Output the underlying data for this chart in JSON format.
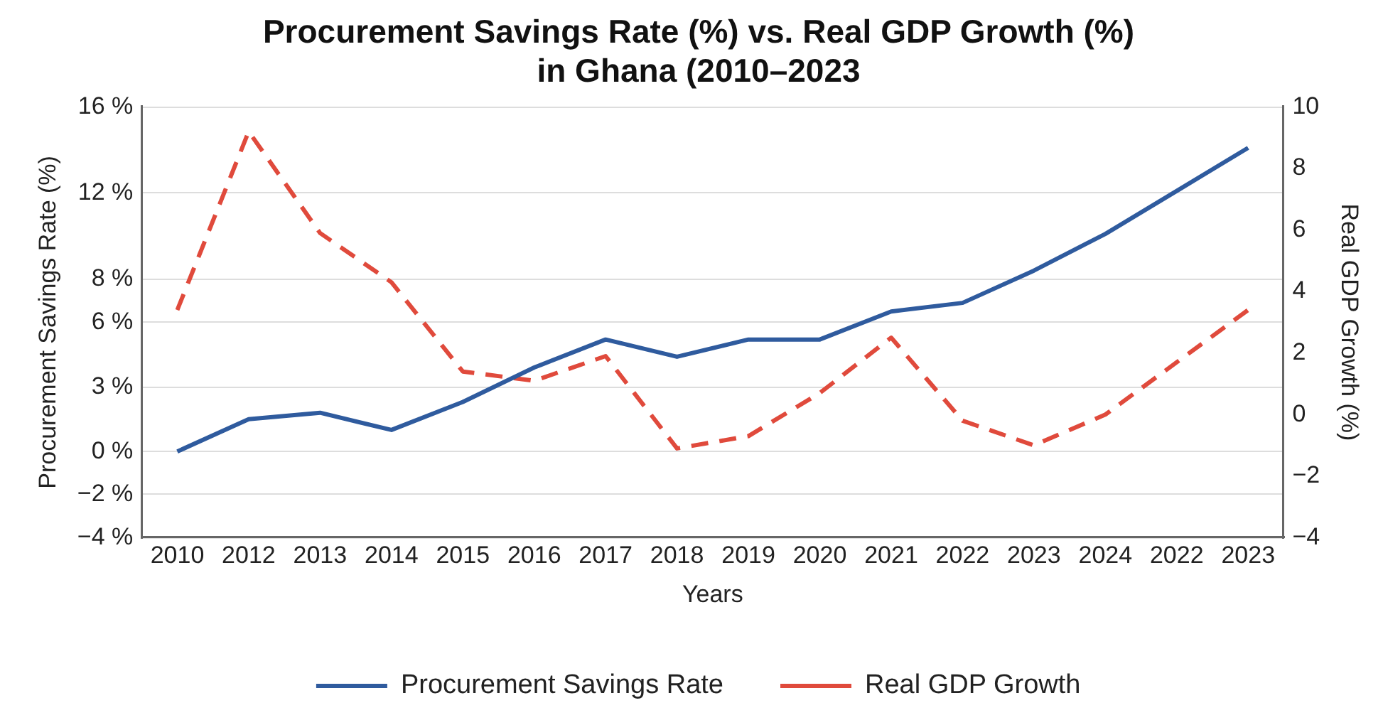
{
  "chart_data": {
    "type": "line",
    "title": "Procurement Savings Rate (%) vs. Real GDP Growth (%)\nin Ghana (2010–2023",
    "xlabel": "Years",
    "ylabel": "Procurement Savings Rate (%)",
    "y2label": "Real GDP Growth (%)",
    "categories": [
      "2010",
      "2012",
      "2013",
      "2014",
      "2015",
      "2016",
      "2017",
      "2018",
      "2019",
      "2020",
      "2021",
      "2022",
      "2023",
      "2024",
      "2022",
      "2023"
    ],
    "series": [
      {
        "name": "Procurement Savings Rate",
        "color": "#2f5b9e",
        "line_style": "solid",
        "values": [
          0,
          1.5,
          1.8,
          1.0,
          2.3,
          3.9,
          5.2,
          4.4,
          5.2,
          5.2,
          6.5,
          6.9,
          8.4,
          10.1,
          12.1,
          14.1
        ]
      },
      {
        "name": "Real GDP Growth",
        "color": "#e04a3c",
        "line_style": "dashed",
        "axis": "y2",
        "values": [
          3.4,
          9.2,
          5.9,
          4.3,
          1.4,
          1.1,
          1.9,
          -1.1,
          -0.7,
          0.7,
          2.5,
          -0.2,
          -1.0,
          0.0,
          1.7,
          3.4
        ]
      }
    ],
    "ylim": [
      -4,
      16
    ],
    "yticks": [
      {
        "value": -4,
        "label": "−4 %"
      },
      {
        "value": -2,
        "label": "−2 %"
      },
      {
        "value": 0,
        "label": "0 %"
      },
      {
        "value": 3,
        "label": "3 %"
      },
      {
        "value": 6,
        "label": "6 %"
      },
      {
        "value": 8,
        "label": "8 %"
      },
      {
        "value": 12,
        "label": "12 %"
      },
      {
        "value": 16,
        "label": "16 %"
      }
    ],
    "y2lim": [
      -4,
      10
    ],
    "y2ticks": [
      {
        "value": -4,
        "label": "−4"
      },
      {
        "value": -2,
        "label": "−2"
      },
      0,
      2,
      4,
      6,
      8,
      10
    ],
    "grid": "y",
    "legend": "bottom",
    "marker": "none"
  }
}
